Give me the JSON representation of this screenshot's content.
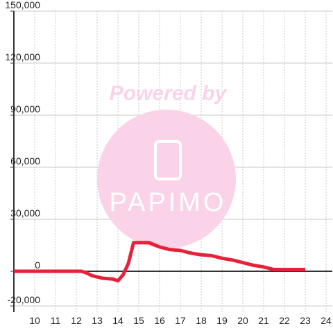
{
  "chart_data": {
    "type": "line",
    "watermark": "Powered by",
    "watermark_logo": "PAPIMO",
    "x": [
      9,
      12.25,
      12.5,
      12.75,
      13.25,
      13.75,
      14,
      14.25,
      14.5,
      14.75,
      15.5,
      16,
      16.5,
      17,
      17.5,
      18,
      18.5,
      19,
      19.5,
      20,
      20.5,
      21,
      21.5,
      23
    ],
    "values": [
      0,
      0,
      -1000,
      -2500,
      -4000,
      -4500,
      -5500,
      -2000,
      4500,
      16500,
      16500,
      14000,
      12500,
      12000,
      10500,
      9500,
      9000,
      7500,
      6500,
      5000,
      3500,
      2500,
      1000,
      1000
    ],
    "color": "#e8213a",
    "xlim": [
      9,
      24.3
    ],
    "xticks": [
      10,
      11,
      12,
      13,
      14,
      15,
      16,
      17,
      18,
      19,
      20,
      21,
      22,
      23,
      24
    ],
    "ylim": [
      -20000,
      150000
    ],
    "yticks": [
      {
        "value": -20000,
        "label": "-20,000"
      },
      0,
      {
        "value": 30000,
        "label": "30,000"
      },
      {
        "value": 60000,
        "label": "60,000"
      },
      {
        "value": 90000,
        "label": "90,000"
      },
      {
        "value": 120000,
        "label": "120,000"
      },
      {
        "value": 150000,
        "label": "150,000"
      }
    ],
    "grid": true
  }
}
